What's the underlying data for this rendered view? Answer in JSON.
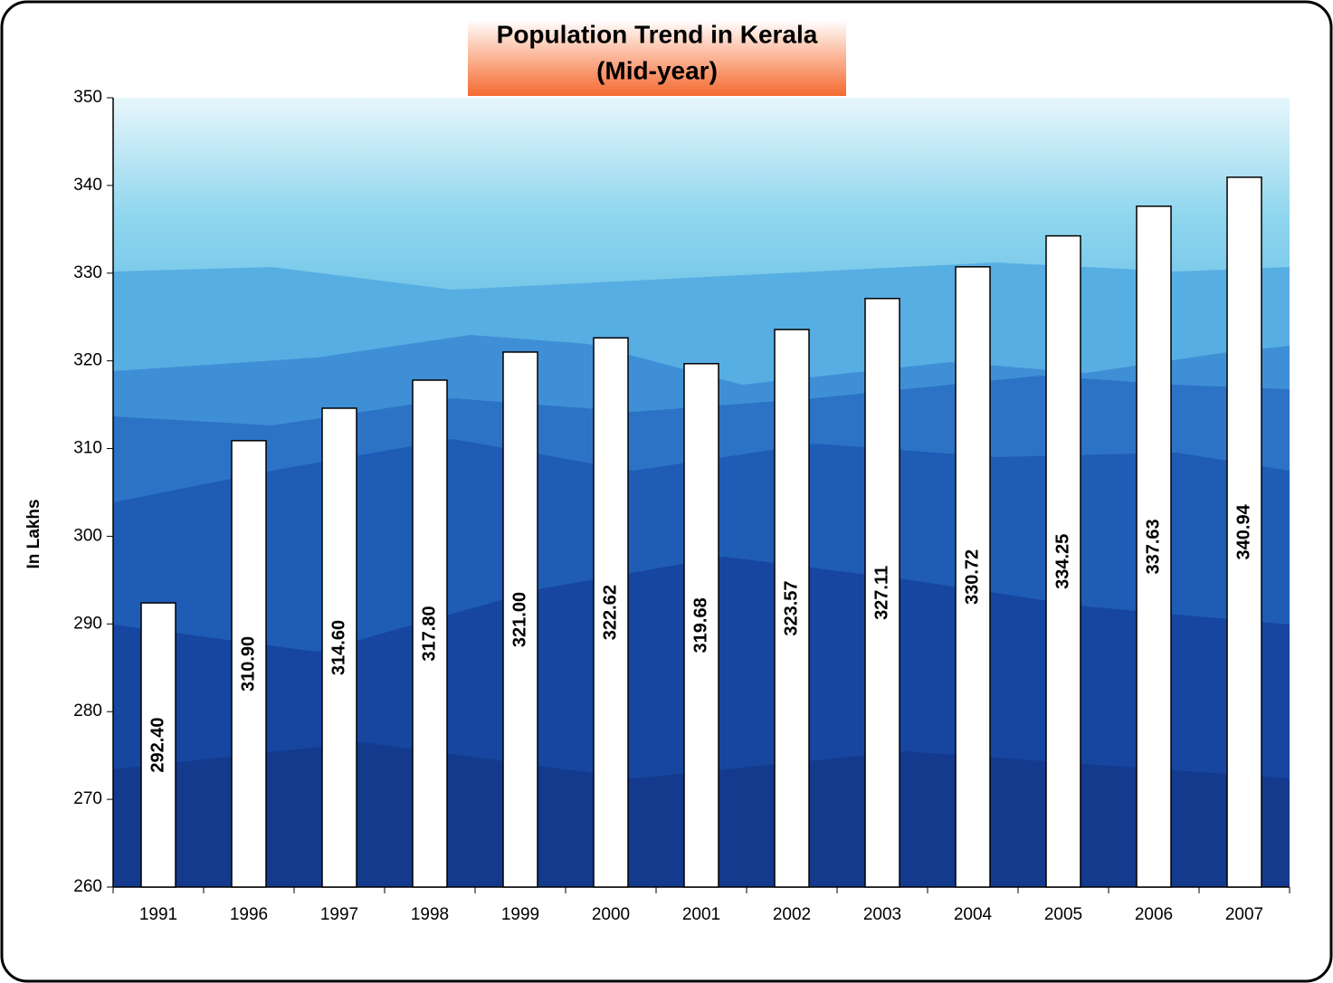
{
  "chart_data": {
    "type": "bar",
    "title": "Population Trend in Kerala",
    "subtitle": "(Mid-year)",
    "y_label": "In Lakhs",
    "categories": [
      "1991",
      "1996",
      "1997",
      "1998",
      "1999",
      "2000",
      "2001",
      "2002",
      "2003",
      "2004",
      "2005",
      "2006",
      "2007"
    ],
    "values": [
      292.4,
      310.9,
      314.6,
      317.8,
      321.0,
      322.62,
      319.68,
      323.57,
      327.11,
      330.72,
      334.25,
      337.63,
      340.94
    ],
    "value_labels": [
      "292.40",
      "310.90",
      "314.60",
      "317.80",
      "321.00",
      "322.62",
      "319.68",
      "323.57",
      "327.11",
      "330.72",
      "334.25",
      "337.63",
      "340.94"
    ],
    "color": "#ffffff",
    "ylim": [
      260,
      350
    ],
    "yticks": [
      260,
      270,
      280,
      290,
      300,
      310,
      320,
      330,
      340,
      350
    ],
    "grid": false
  }
}
